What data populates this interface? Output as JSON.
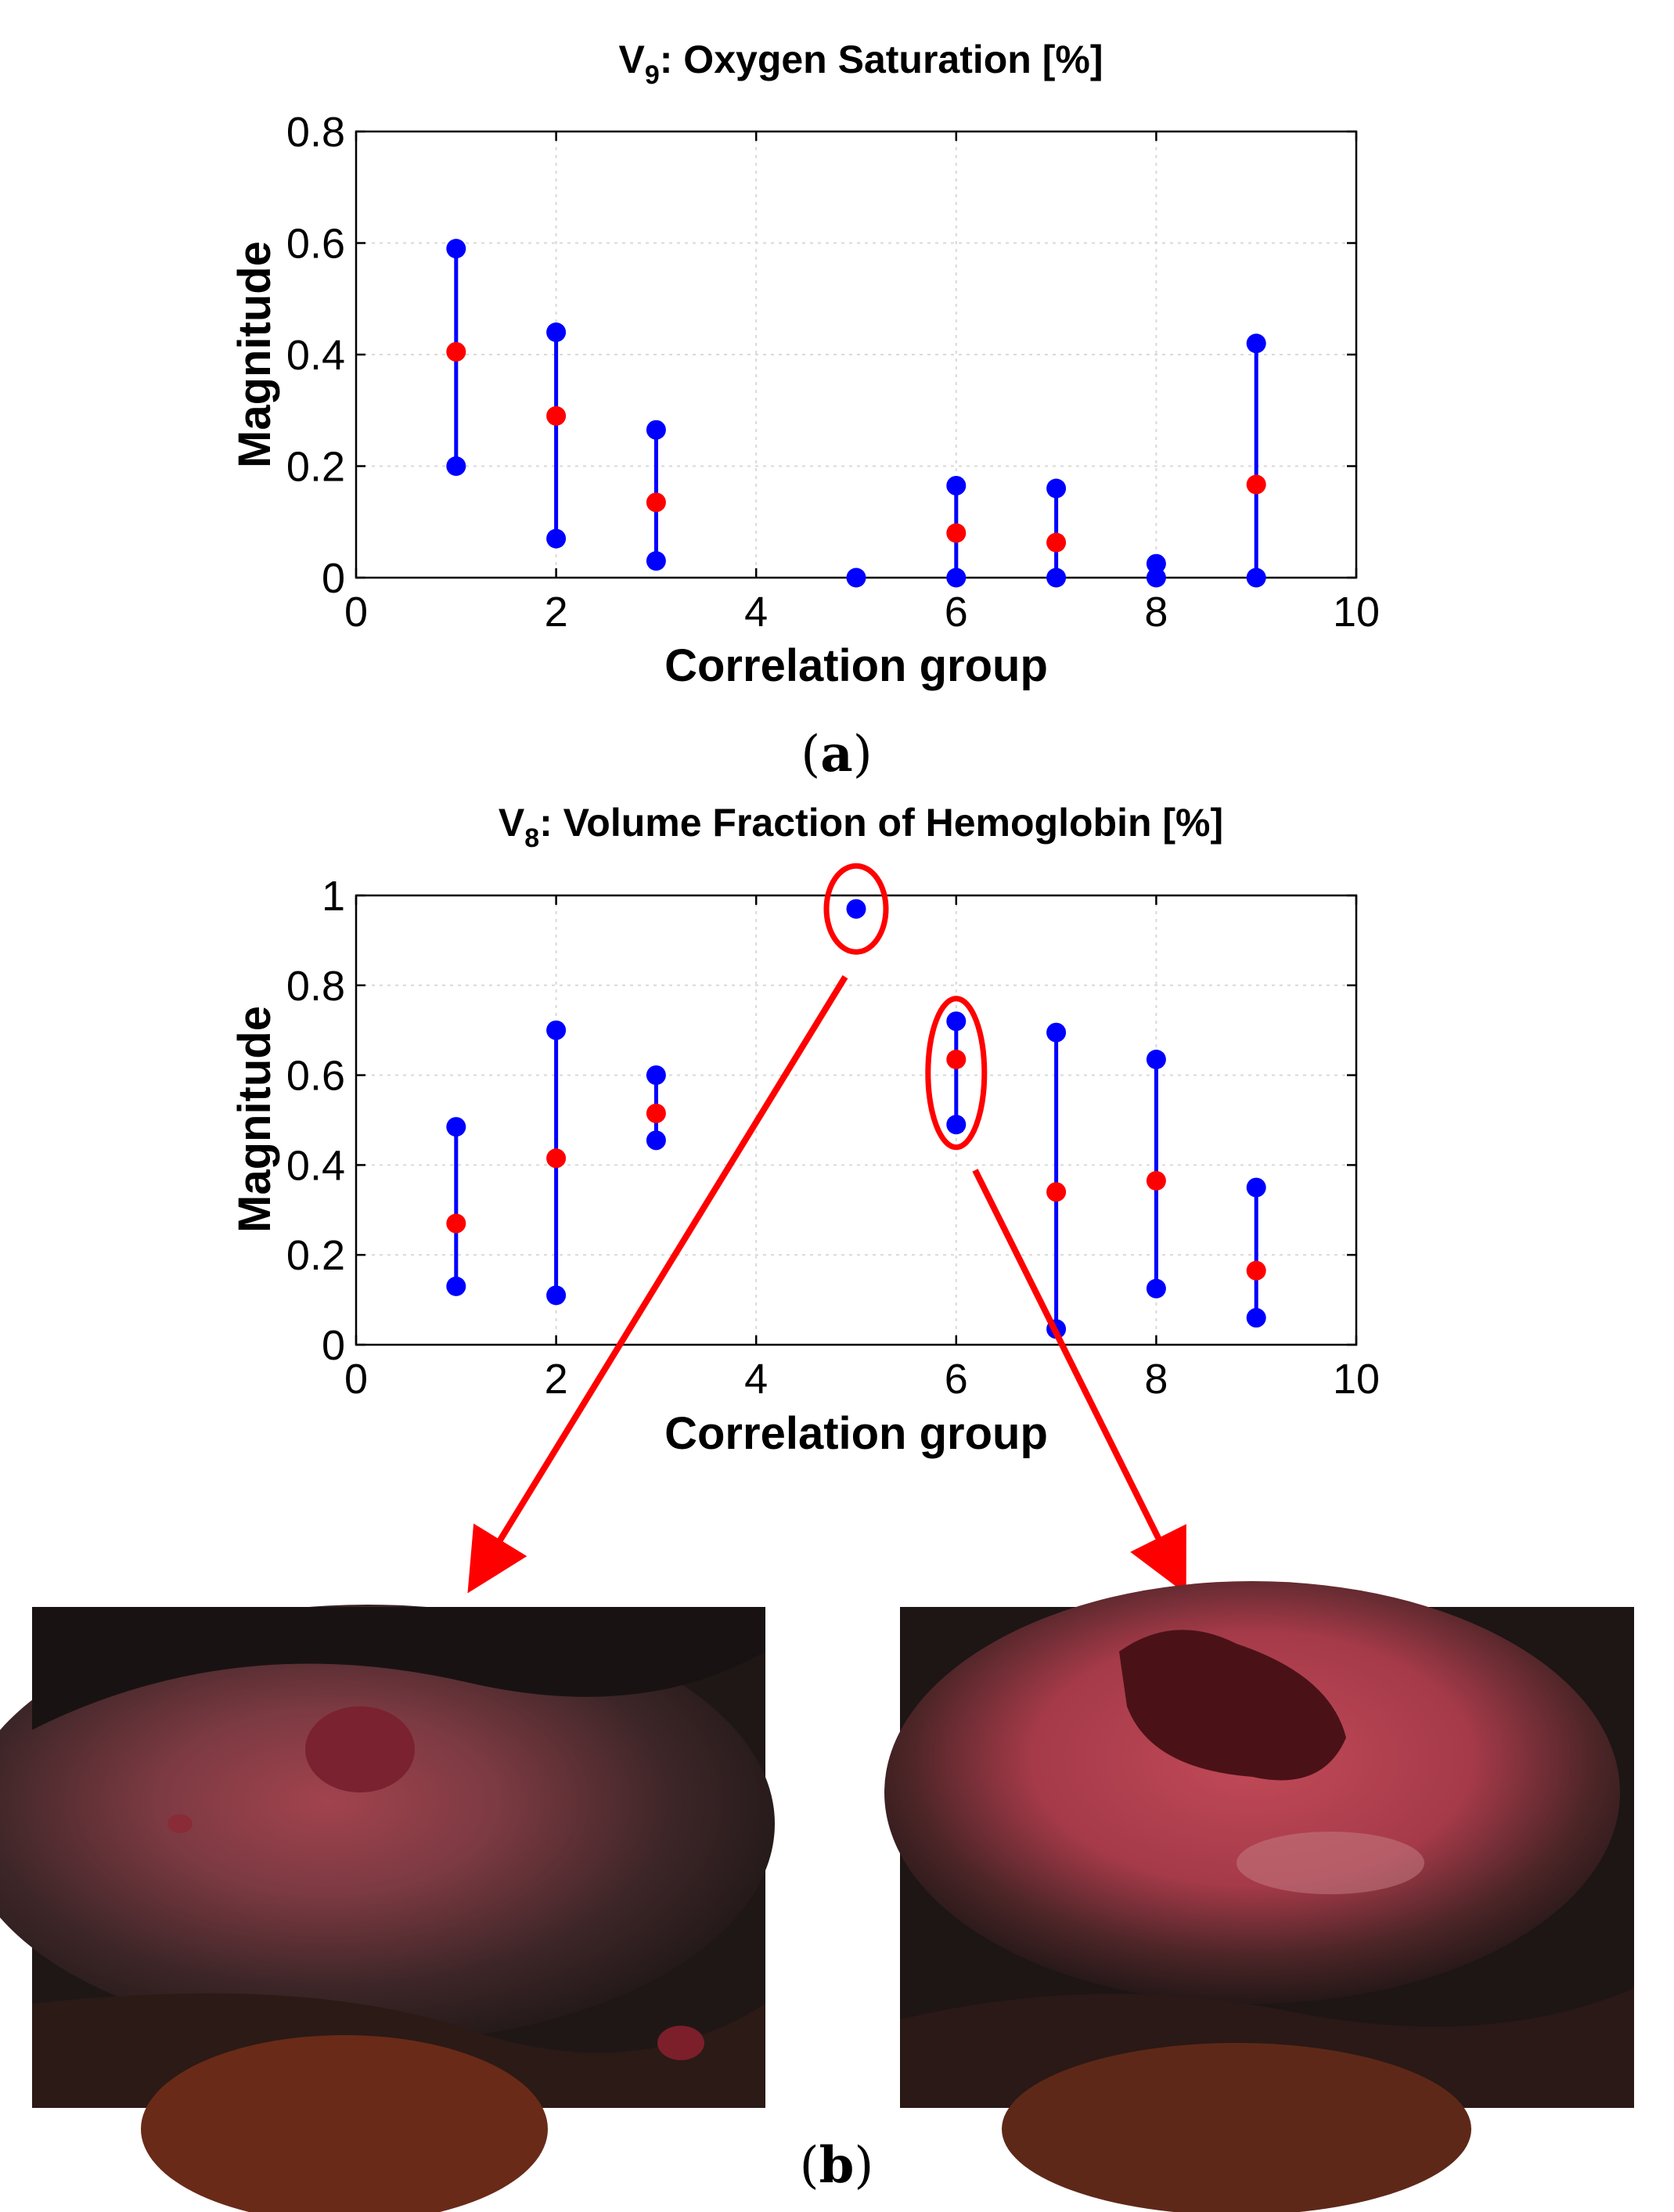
{
  "panel_a_label": {
    "open": "(",
    "letter": "a",
    "close": ")"
  },
  "panel_b_label": {
    "open": "(",
    "letter": "b",
    "close": ")"
  },
  "colors": {
    "range_color": "#0000ff",
    "mean_color": "#ff0000",
    "highlight": "#ff0000",
    "grid": "#d9d9d9"
  },
  "chart_data": [
    {
      "type": "scatter",
      "title_prefix": "V",
      "title_subscript": "9",
      "title_rest": ": Oxygen Saturation [%]",
      "xlabel": "Correlation group",
      "ylabel": "Magnitude",
      "xlim": [
        0,
        10
      ],
      "ylim": [
        0,
        0.8
      ],
      "xticks": [
        0,
        2,
        4,
        6,
        8,
        10
      ],
      "yticks": [
        0,
        0.2,
        0.4,
        0.6,
        0.8
      ],
      "grid": true,
      "series": [
        {
          "name": "range",
          "color": "#0000ff",
          "points": [
            {
              "x": 1,
              "min": 0.2,
              "max": 0.59
            },
            {
              "x": 2,
              "min": 0.07,
              "max": 0.44
            },
            {
              "x": 3,
              "min": 0.03,
              "max": 0.265
            },
            {
              "x": 5,
              "min": 0.0,
              "max": 0.0
            },
            {
              "x": 6,
              "min": 0.0,
              "max": 0.165
            },
            {
              "x": 7,
              "min": 0.0,
              "max": 0.16
            },
            {
              "x": 8,
              "min": 0.0,
              "max": 0.025
            },
            {
              "x": 9,
              "min": 0.0,
              "max": 0.42
            }
          ]
        },
        {
          "name": "mean",
          "color": "#ff0000",
          "points": [
            {
              "x": 1,
              "y": 0.405
            },
            {
              "x": 2,
              "y": 0.29
            },
            {
              "x": 3,
              "y": 0.135
            },
            {
              "x": 6,
              "y": 0.08
            },
            {
              "x": 7,
              "y": 0.063
            },
            {
              "x": 9,
              "y": 0.167
            }
          ]
        }
      ],
      "highlights": []
    },
    {
      "type": "scatter",
      "title_prefix": "V",
      "title_subscript": "8",
      "title_rest": ": Volume Fraction of Hemoglobin [%]",
      "xlabel": "Correlation group",
      "ylabel": "Magnitude",
      "xlim": [
        0,
        10
      ],
      "ylim": [
        0,
        1
      ],
      "xticks": [
        0,
        2,
        4,
        6,
        8,
        10
      ],
      "yticks": [
        0,
        0.2,
        0.4,
        0.6,
        0.8,
        1
      ],
      "grid": true,
      "series": [
        {
          "name": "range",
          "color": "#0000ff",
          "points": [
            {
              "x": 1,
              "min": 0.13,
              "max": 0.485
            },
            {
              "x": 2,
              "min": 0.11,
              "max": 0.7
            },
            {
              "x": 3,
              "min": 0.455,
              "max": 0.6
            },
            {
              "x": 5,
              "min": 0.97,
              "max": 0.97
            },
            {
              "x": 6,
              "min": 0.49,
              "max": 0.72
            },
            {
              "x": 7,
              "min": 0.035,
              "max": 0.695
            },
            {
              "x": 8,
              "min": 0.125,
              "max": 0.635
            },
            {
              "x": 9,
              "min": 0.06,
              "max": 0.35
            }
          ]
        },
        {
          "name": "mean",
          "color": "#ff0000",
          "points": [
            {
              "x": 1,
              "y": 0.27
            },
            {
              "x": 2,
              "y": 0.415
            },
            {
              "x": 3,
              "y": 0.515
            },
            {
              "x": 6,
              "y": 0.635
            },
            {
              "x": 7,
              "y": 0.34
            },
            {
              "x": 8,
              "y": 0.365
            },
            {
              "x": 9,
              "y": 0.165
            }
          ]
        }
      ],
      "highlights": [
        {
          "x": 5,
          "y": 0.97,
          "points_to": "left-photo"
        },
        {
          "x": 6,
          "y": 0.605,
          "points_to": "right-photo"
        }
      ]
    }
  ],
  "photos": [
    {
      "name": "left-photo",
      "description": "wound photograph"
    },
    {
      "name": "right-photo",
      "description": "wound photograph"
    }
  ]
}
